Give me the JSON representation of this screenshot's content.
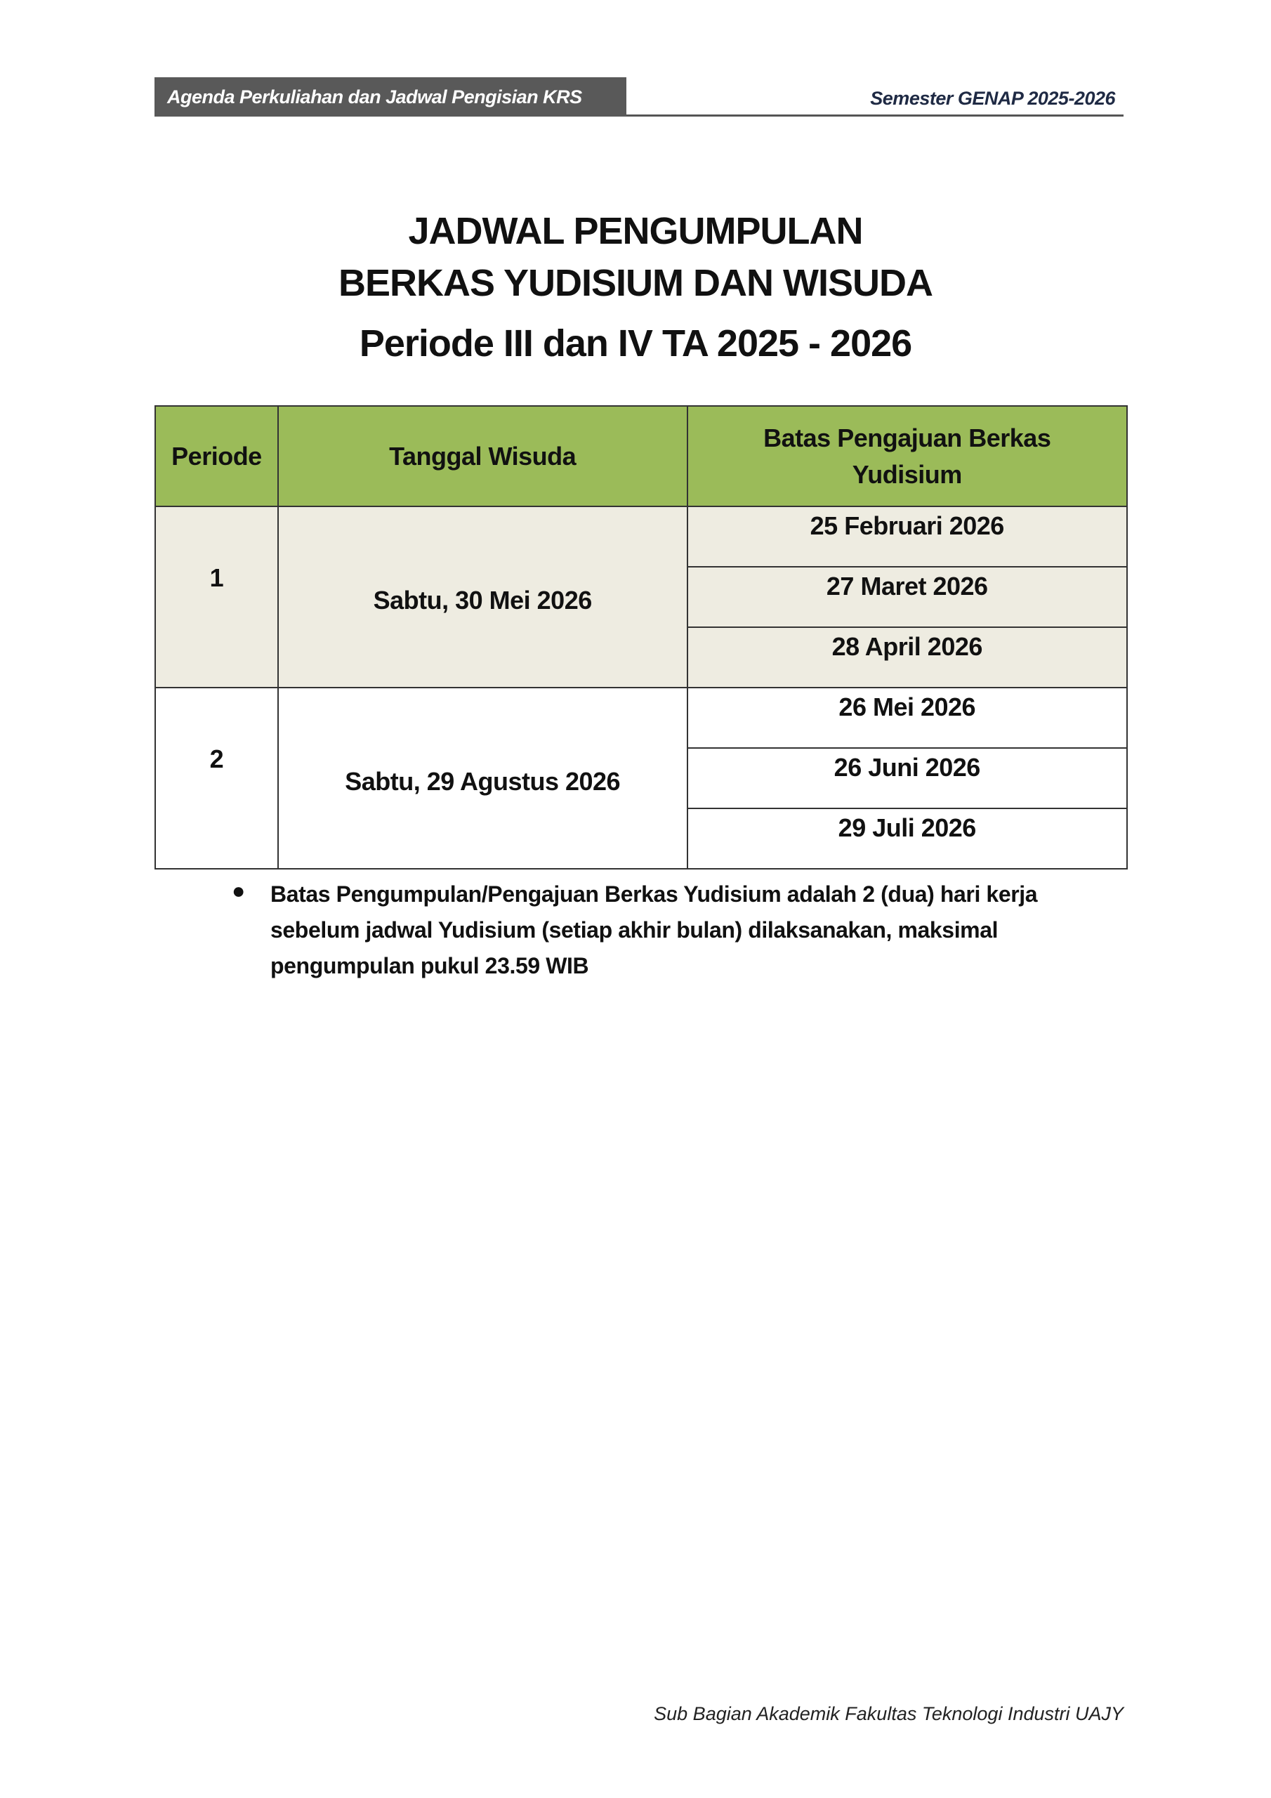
{
  "header": {
    "left": "Agenda Perkuliahan dan Jadwal Pengisian KRS",
    "right": "Semester GENAP 2025-2026",
    "colors": {
      "bar": "#595959",
      "right_text": "#1f2a44"
    }
  },
  "title": {
    "line1": "JADWAL PENGUMPULAN",
    "line2": "BERKAS YUDISIUM DAN WISUDA",
    "line3": "Periode III dan IV TA 2025 - 2026"
  },
  "table": {
    "headers": [
      "Periode",
      "Tanggal Wisuda",
      "Batas Pengajuan Berkas Yudisium"
    ],
    "rows": [
      {
        "periode": "1",
        "tanggal": "Sabtu, 30 Mei 2026",
        "batas": [
          "25 Februari 2026",
          "27 Maret 2026",
          "28 April 2026"
        ]
      },
      {
        "periode": "2",
        "tanggal": "Sabtu, 29 Agustus 2026",
        "batas": [
          "26 Mei 2026",
          "26 Juni 2026",
          "29 Juli 2026"
        ]
      }
    ],
    "colors": {
      "header": "#9bbb59",
      "shaded_row": "#eeece1"
    }
  },
  "notes": [
    "Batas Pengumpulan/Pengajuan Berkas Yudisium adalah 2 (dua) hari kerja sebelum jadwal Yudisium (setiap akhir bulan) dilaksanakan, maksimal pengumpulan pukul 23.59 WIB"
  ],
  "footer": "Sub Bagian Akademik Fakultas Teknologi Industri UAJY"
}
